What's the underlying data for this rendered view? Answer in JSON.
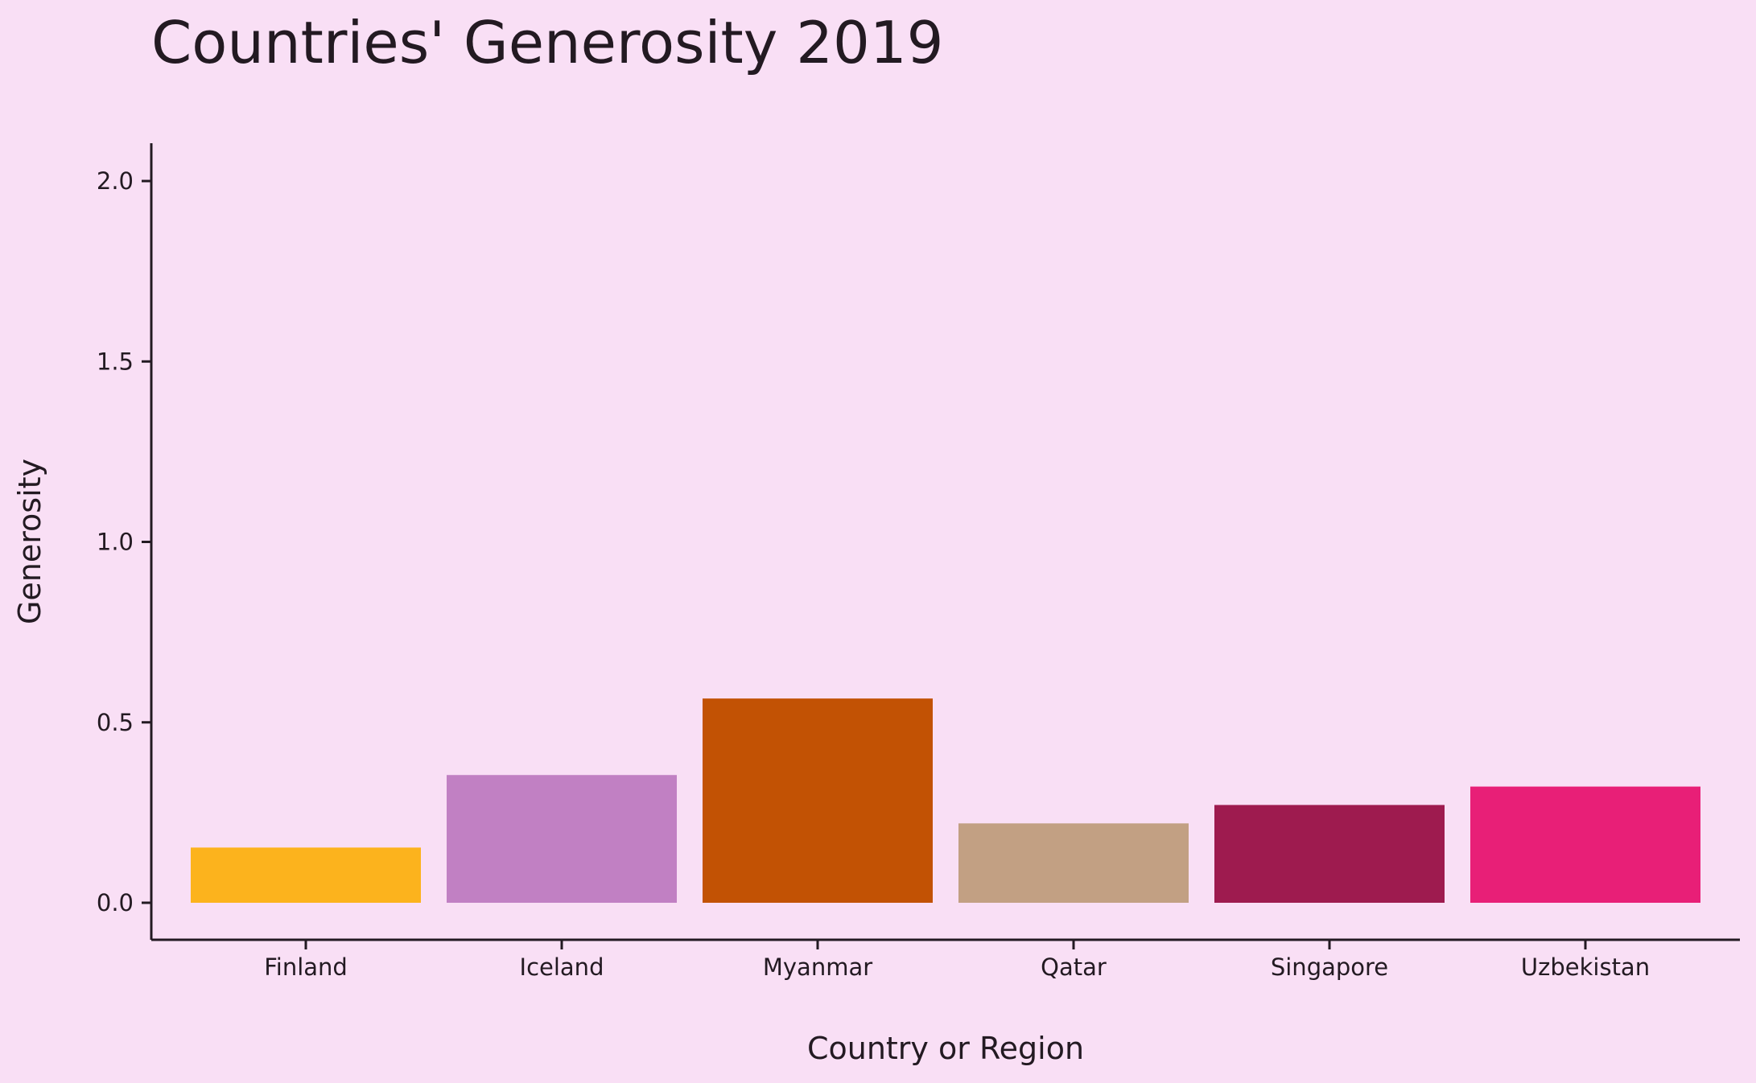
{
  "chart_data": {
    "type": "bar",
    "title": "Countries' Generosity 2019",
    "xlabel": "Country or Region",
    "ylabel": "Generosity",
    "categories": [
      "Finland",
      "Iceland",
      "Myanmar",
      "Qatar",
      "Singapore",
      "Uzbekistan"
    ],
    "values": [
      0.153,
      0.354,
      0.566,
      0.22,
      0.271,
      0.322
    ],
    "colors": [
      "#fcb31d",
      "#c180c3",
      "#c25204",
      "#c2a083",
      "#9e1b4f",
      "#e81f77"
    ],
    "ylim": [
      0,
      2.1
    ],
    "yticks": [
      0.0,
      0.5,
      1.0,
      1.5,
      2.0
    ],
    "ytick_labels": [
      "0.0",
      "0.5",
      "1.0",
      "1.5",
      "2.0"
    ],
    "grid": false,
    "legend": "none"
  }
}
